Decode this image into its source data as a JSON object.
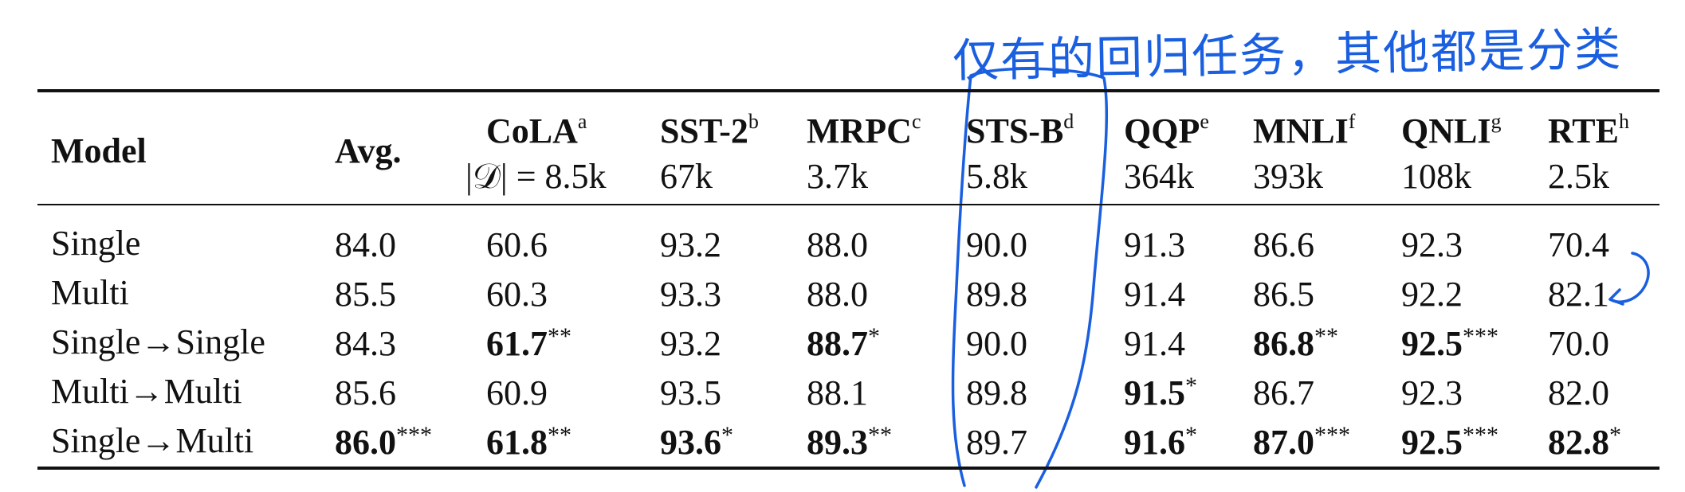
{
  "table": {
    "headers": [
      {
        "name": "Model",
        "size": ""
      },
      {
        "name": "Avg.",
        "size": ""
      },
      {
        "name": "CoLA",
        "sup": "a",
        "size": "|𝒟| = 8.5k"
      },
      {
        "name": "SST-2",
        "sup": "b",
        "size": "67k"
      },
      {
        "name": "MRPC",
        "sup": "c",
        "size": "3.7k"
      },
      {
        "name": "STS-B",
        "sup": "d",
        "size": "5.8k"
      },
      {
        "name": "QQP",
        "sup": "e",
        "size": "364k"
      },
      {
        "name": "MNLI",
        "sup": "f",
        "size": "393k"
      },
      {
        "name": "QNLI",
        "sup": "g",
        "size": "108k"
      },
      {
        "name": "RTE",
        "sup": "h",
        "size": "2.5k"
      }
    ],
    "rows": [
      {
        "model": "Single",
        "cells": [
          {
            "v": "84.0",
            "b": false,
            "s": ""
          },
          {
            "v": "60.6",
            "b": false,
            "s": ""
          },
          {
            "v": "93.2",
            "b": false,
            "s": ""
          },
          {
            "v": "88.0",
            "b": false,
            "s": ""
          },
          {
            "v": "90.0",
            "b": false,
            "s": ""
          },
          {
            "v": "91.3",
            "b": false,
            "s": ""
          },
          {
            "v": "86.6",
            "b": false,
            "s": ""
          },
          {
            "v": "92.3",
            "b": false,
            "s": ""
          },
          {
            "v": "70.4",
            "b": false,
            "s": ""
          }
        ]
      },
      {
        "model": "Multi",
        "cells": [
          {
            "v": "85.5",
            "b": false,
            "s": ""
          },
          {
            "v": "60.3",
            "b": false,
            "s": ""
          },
          {
            "v": "93.3",
            "b": false,
            "s": ""
          },
          {
            "v": "88.0",
            "b": false,
            "s": ""
          },
          {
            "v": "89.8",
            "b": false,
            "s": ""
          },
          {
            "v": "91.4",
            "b": false,
            "s": ""
          },
          {
            "v": "86.5",
            "b": false,
            "s": ""
          },
          {
            "v": "92.2",
            "b": false,
            "s": ""
          },
          {
            "v": "82.1",
            "b": false,
            "s": ""
          }
        ]
      },
      {
        "model": "Single→Single",
        "cells": [
          {
            "v": "84.3",
            "b": false,
            "s": ""
          },
          {
            "v": "61.7",
            "b": true,
            "s": "**"
          },
          {
            "v": "93.2",
            "b": false,
            "s": ""
          },
          {
            "v": "88.7",
            "b": true,
            "s": "*"
          },
          {
            "v": "90.0",
            "b": false,
            "s": ""
          },
          {
            "v": "91.4",
            "b": false,
            "s": ""
          },
          {
            "v": "86.8",
            "b": true,
            "s": "**"
          },
          {
            "v": "92.5",
            "b": true,
            "s": "***"
          },
          {
            "v": "70.0",
            "b": false,
            "s": ""
          }
        ]
      },
      {
        "model": "Multi→Multi",
        "cells": [
          {
            "v": "85.6",
            "b": false,
            "s": ""
          },
          {
            "v": "60.9",
            "b": false,
            "s": ""
          },
          {
            "v": "93.5",
            "b": false,
            "s": ""
          },
          {
            "v": "88.1",
            "b": false,
            "s": ""
          },
          {
            "v": "89.8",
            "b": false,
            "s": ""
          },
          {
            "v": "91.5",
            "b": true,
            "s": "*"
          },
          {
            "v": "86.7",
            "b": false,
            "s": ""
          },
          {
            "v": "92.3",
            "b": false,
            "s": ""
          },
          {
            "v": "82.0",
            "b": false,
            "s": ""
          }
        ]
      },
      {
        "model": "Single→Multi",
        "cells": [
          {
            "v": "86.0",
            "b": true,
            "s": "***"
          },
          {
            "v": "61.8",
            "b": true,
            "s": "**"
          },
          {
            "v": "93.6",
            "b": true,
            "s": "*"
          },
          {
            "v": "89.3",
            "b": true,
            "s": "**"
          },
          {
            "v": "89.7",
            "b": false,
            "s": ""
          },
          {
            "v": "91.6",
            "b": true,
            "s": "*"
          },
          {
            "v": "87.0",
            "b": true,
            "s": "***"
          },
          {
            "v": "92.5",
            "b": true,
            "s": "***"
          },
          {
            "v": "82.8",
            "b": true,
            "s": "*"
          }
        ]
      }
    ]
  },
  "annotation": {
    "note": "仅有的回归任务，其他都是分类",
    "color": "#1a5fe0"
  }
}
